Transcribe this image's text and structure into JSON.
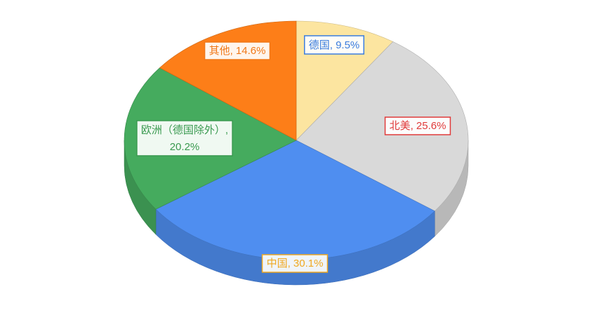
{
  "chart_data": {
    "type": "pie3d",
    "values": [
      9.5,
      25.6,
      30.1,
      20.2,
      14.6
    ],
    "value_labels": [
      "德国, 9.5%",
      "北美, 25.6%",
      "中国, 30.1%",
      "欧洲（德国除外）, 20.2%",
      "其他, 14.6%"
    ],
    "colors": [
      "#fce5a0",
      "#d9d9d9",
      "#4f8ef0",
      "#45ab5e",
      "#fd7e18"
    ],
    "label_colors": [
      "#3b7ddd",
      "#e03b3b",
      "#f0a820",
      "#3a9a50",
      "#f07818"
    ]
  }
}
